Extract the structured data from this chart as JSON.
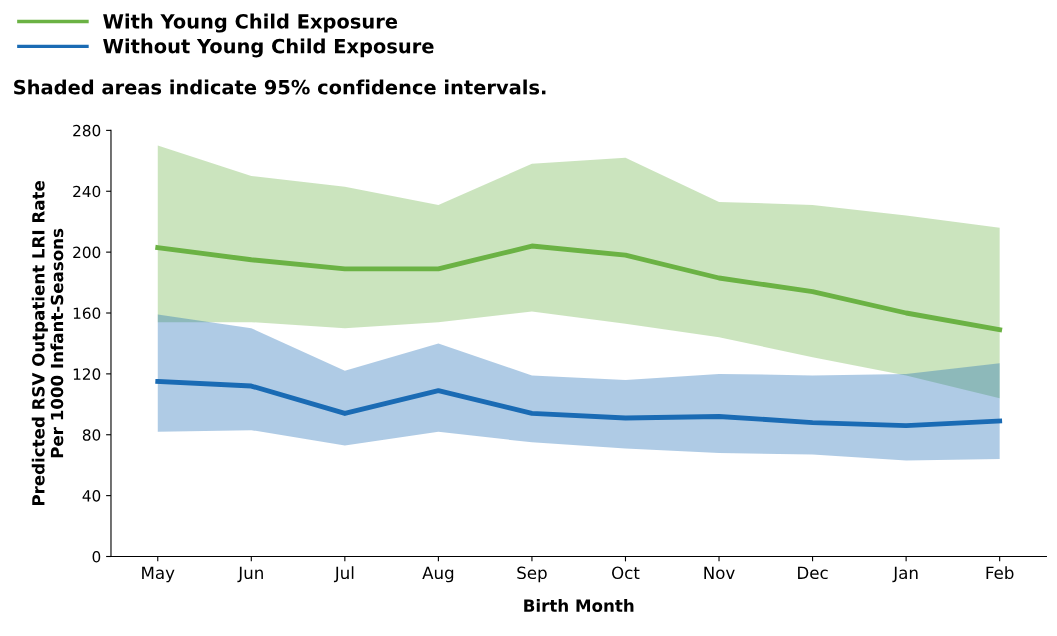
{
  "chart_data": {
    "type": "line",
    "xlabel": "Birth Month",
    "ylabel": "Predicted RSV Outpatient LRI Rate\nPer 1000 Infant-Seasons",
    "categories": [
      "May",
      "Jun",
      "Jul",
      "Aug",
      "Sep",
      "Oct",
      "Nov",
      "Dec",
      "Jan",
      "Feb"
    ],
    "series": [
      {
        "name": "With Young Child Exposure",
        "color": "#6bb244",
        "values": [
          203,
          195,
          189,
          189,
          204,
          198,
          183,
          174,
          160,
          149
        ],
        "lower": [
          154,
          154,
          150,
          154,
          161,
          153,
          144,
          131,
          119,
          104
        ],
        "upper": [
          270,
          250,
          243,
          231,
          258,
          262,
          233,
          231,
          224,
          216
        ]
      },
      {
        "name": "Without Young Child Exposure",
        "color": "#1a6bb4",
        "values": [
          115,
          112,
          94,
          109,
          94,
          91,
          92,
          88,
          86,
          89
        ],
        "lower": [
          82,
          83,
          73,
          82,
          75,
          71,
          68,
          67,
          63,
          64
        ],
        "upper": [
          159,
          150,
          122,
          140,
          119,
          116,
          120,
          119,
          120,
          127
        ]
      }
    ],
    "annotations": [
      "Shaded areas indicate 95% confidence intervals."
    ],
    "ylim": [
      0,
      280
    ],
    "yticks": [
      0,
      40,
      80,
      120,
      160,
      200,
      240,
      280
    ],
    "legend": "top left",
    "grid": false
  }
}
